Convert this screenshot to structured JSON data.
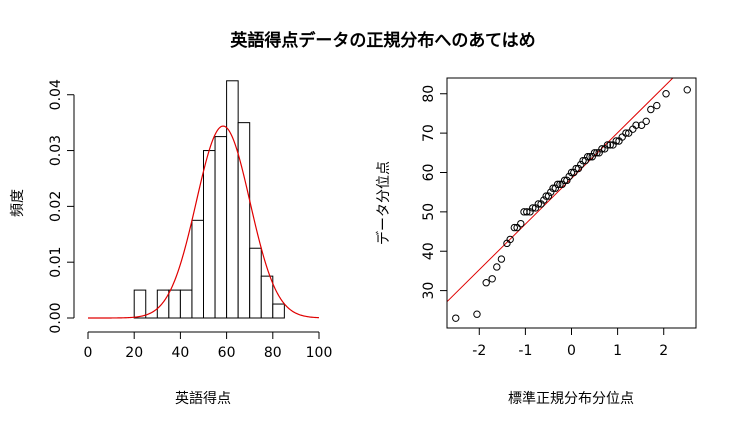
{
  "figure": {
    "title": "英語得点データの正規分布へのあてはめ"
  },
  "chart_data": [
    {
      "type": "bar",
      "subtype": "histogram-with-density",
      "xlabel": "英語得点",
      "ylabel": "頻度",
      "xlim": [
        0,
        100
      ],
      "ylim": [
        0,
        0.043
      ],
      "xticks": [
        0,
        20,
        40,
        60,
        80,
        100
      ],
      "yticks": [
        0.0,
        0.01,
        0.02,
        0.03,
        0.04
      ],
      "bin_width": 5,
      "bins": [
        {
          "x0": 20,
          "x1": 25,
          "density": 0.005
        },
        {
          "x0": 25,
          "x1": 30,
          "density": 0.0
        },
        {
          "x0": 30,
          "x1": 35,
          "density": 0.005
        },
        {
          "x0": 35,
          "x1": 40,
          "density": 0.005
        },
        {
          "x0": 40,
          "x1": 45,
          "density": 0.005
        },
        {
          "x0": 45,
          "x1": 50,
          "density": 0.0175
        },
        {
          "x0": 50,
          "x1": 55,
          "density": 0.03
        },
        {
          "x0": 55,
          "x1": 60,
          "density": 0.0325
        },
        {
          "x0": 60,
          "x1": 65,
          "density": 0.0425
        },
        {
          "x0": 65,
          "x1": 70,
          "density": 0.035
        },
        {
          "x0": 70,
          "x1": 75,
          "density": 0.0125
        },
        {
          "x0": 75,
          "x1": 80,
          "density": 0.0075
        },
        {
          "x0": 80,
          "x1": 85,
          "density": 0.0025
        }
      ],
      "density_curve": {
        "mean": 58.5,
        "sd": 11.6,
        "color": "#e00000"
      },
      "bar_fill": "#ffffff",
      "bar_stroke": "#000000"
    },
    {
      "type": "scatter",
      "subtype": "qq-plot",
      "xlabel": "標準正規分布分位点",
      "ylabel": "データ分位点",
      "xlim": [
        -2.7,
        2.7
      ],
      "ylim": [
        20.5,
        84
      ],
      "xticks": [
        -2,
        -1,
        0,
        1,
        2
      ],
      "yticks": [
        30,
        40,
        50,
        60,
        70,
        80
      ],
      "reference_line": {
        "intercept": 58.5,
        "slope": 11.6,
        "color": "#e00000"
      },
      "points": [
        {
          "x": -2.51,
          "y": 23
        },
        {
          "x": -2.05,
          "y": 24
        },
        {
          "x": -1.85,
          "y": 32
        },
        {
          "x": -1.72,
          "y": 33
        },
        {
          "x": -1.62,
          "y": 36
        },
        {
          "x": -1.52,
          "y": 38
        },
        {
          "x": -1.4,
          "y": 42
        },
        {
          "x": -1.33,
          "y": 43
        },
        {
          "x": -1.24,
          "y": 46
        },
        {
          "x": -1.18,
          "y": 46
        },
        {
          "x": -1.1,
          "y": 47
        },
        {
          "x": -1.03,
          "y": 50
        },
        {
          "x": -0.97,
          "y": 50
        },
        {
          "x": -0.9,
          "y": 50
        },
        {
          "x": -0.84,
          "y": 51
        },
        {
          "x": -0.78,
          "y": 51
        },
        {
          "x": -0.72,
          "y": 52
        },
        {
          "x": -0.66,
          "y": 52
        },
        {
          "x": -0.6,
          "y": 53
        },
        {
          "x": -0.55,
          "y": 54
        },
        {
          "x": -0.5,
          "y": 54
        },
        {
          "x": -0.45,
          "y": 55
        },
        {
          "x": -0.4,
          "y": 56
        },
        {
          "x": -0.35,
          "y": 56
        },
        {
          "x": -0.3,
          "y": 57
        },
        {
          "x": -0.25,
          "y": 57
        },
        {
          "x": -0.2,
          "y": 57
        },
        {
          "x": -0.15,
          "y": 58
        },
        {
          "x": -0.1,
          "y": 58
        },
        {
          "x": -0.05,
          "y": 59
        },
        {
          "x": 0.0,
          "y": 60
        },
        {
          "x": 0.05,
          "y": 60
        },
        {
          "x": 0.1,
          "y": 61
        },
        {
          "x": 0.15,
          "y": 61
        },
        {
          "x": 0.2,
          "y": 62
        },
        {
          "x": 0.25,
          "y": 63
        },
        {
          "x": 0.3,
          "y": 63
        },
        {
          "x": 0.35,
          "y": 64
        },
        {
          "x": 0.4,
          "y": 64
        },
        {
          "x": 0.45,
          "y": 64
        },
        {
          "x": 0.5,
          "y": 65
        },
        {
          "x": 0.55,
          "y": 65
        },
        {
          "x": 0.6,
          "y": 65
        },
        {
          "x": 0.66,
          "y": 66
        },
        {
          "x": 0.72,
          "y": 66
        },
        {
          "x": 0.78,
          "y": 67
        },
        {
          "x": 0.84,
          "y": 67
        },
        {
          "x": 0.9,
          "y": 67
        },
        {
          "x": 0.97,
          "y": 68
        },
        {
          "x": 1.03,
          "y": 68
        },
        {
          "x": 1.1,
          "y": 69
        },
        {
          "x": 1.18,
          "y": 70
        },
        {
          "x": 1.24,
          "y": 70
        },
        {
          "x": 1.33,
          "y": 71
        },
        {
          "x": 1.4,
          "y": 72
        },
        {
          "x": 1.52,
          "y": 72
        },
        {
          "x": 1.62,
          "y": 73
        },
        {
          "x": 1.72,
          "y": 76
        },
        {
          "x": 1.85,
          "y": 77
        },
        {
          "x": 2.05,
          "y": 80
        },
        {
          "x": 2.51,
          "y": 81
        }
      ]
    }
  ]
}
